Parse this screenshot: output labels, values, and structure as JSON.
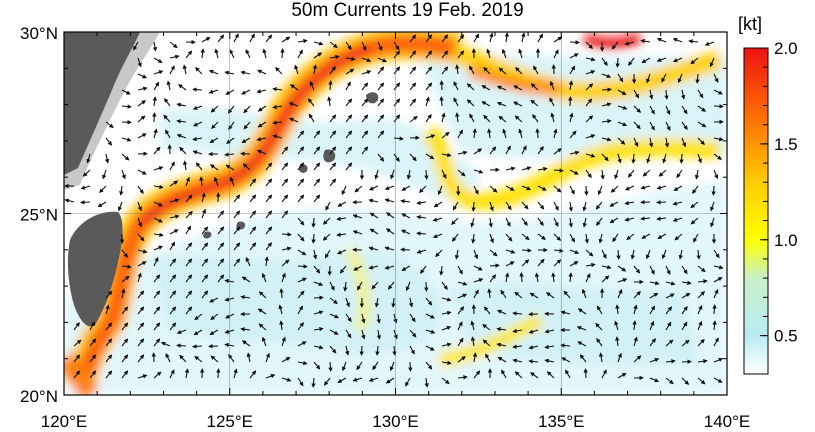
{
  "title": "50m Currents  19 Feb. 2019",
  "map": {
    "lon_range": [
      120,
      140
    ],
    "lat_range": [
      20,
      30
    ],
    "lat_ticks": [
      {
        "value": 30,
        "label": "30°N"
      },
      {
        "value": 25,
        "label": "25°N"
      },
      {
        "value": 20,
        "label": "20°N"
      }
    ],
    "lon_ticks": [
      {
        "value": 120,
        "label": "120°E"
      },
      {
        "value": 125,
        "label": "125°E"
      },
      {
        "value": 130,
        "label": "130°E"
      },
      {
        "value": 135,
        "label": "135°E"
      },
      {
        "value": 140,
        "label": "140°E"
      }
    ],
    "colors": {
      "land": "#5a5a5a",
      "shelf": "#c8c8c8",
      "ocean": "#ffffff",
      "arrow": "#111111"
    }
  },
  "colorbar": {
    "unit": "[kt]",
    "min": 0.3,
    "max": 2.0,
    "ticks": [
      {
        "value": 2.0,
        "label": "2.0"
      },
      {
        "value": 1.5,
        "label": "1.5"
      },
      {
        "value": 1.0,
        "label": "1.0"
      },
      {
        "value": 0.5,
        "label": "0.5"
      }
    ],
    "stops": [
      {
        "value": 0.3,
        "color": "#ffffff"
      },
      {
        "value": 0.5,
        "color": "#b8ecf2"
      },
      {
        "value": 0.8,
        "color": "#c8f0c8"
      },
      {
        "value": 1.0,
        "color": "#ffff00"
      },
      {
        "value": 1.3,
        "color": "#ffcc00"
      },
      {
        "value": 1.6,
        "color": "#ff7a00"
      },
      {
        "value": 2.0,
        "color": "#ee1111"
      }
    ]
  }
}
